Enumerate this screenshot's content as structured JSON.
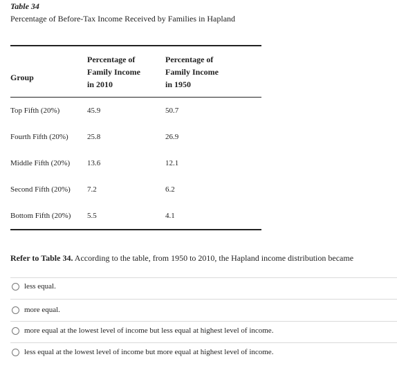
{
  "table": {
    "label": "Table 34",
    "caption": "Percentage of Before-Tax Income Received by Families in Hapland",
    "headers": {
      "group": "Group",
      "col1": [
        "Percentage of",
        "Family Income",
        "in 2010"
      ],
      "col2": [
        "Percentage of",
        "Family Income",
        "in 1950"
      ]
    },
    "rows": [
      {
        "group": "Top Fifth (20%)",
        "y2010": "45.9",
        "y1950": "50.7"
      },
      {
        "group": "Fourth Fifth (20%)",
        "y2010": "25.8",
        "y1950": "26.9"
      },
      {
        "group": "Middle Fifth (20%)",
        "y2010": "13.6",
        "y1950": "12.1"
      },
      {
        "group": "Second Fifth (20%)",
        "y2010": "7.2",
        "y1950": "6.2"
      },
      {
        "group": "Bottom Fifth (20%)",
        "y2010": "5.5",
        "y1950": "4.1"
      }
    ]
  },
  "question": {
    "ref": "Refer to Table 34.",
    "text": "According to the table, from 1950 to 2010, the Hapland income distribution became"
  },
  "options": [
    "less equal.",
    "more equal.",
    "more equal at the lowest level of income but less equal at highest level of income.",
    "less equal at the lowest level of income but more equal at highest level of income."
  ]
}
